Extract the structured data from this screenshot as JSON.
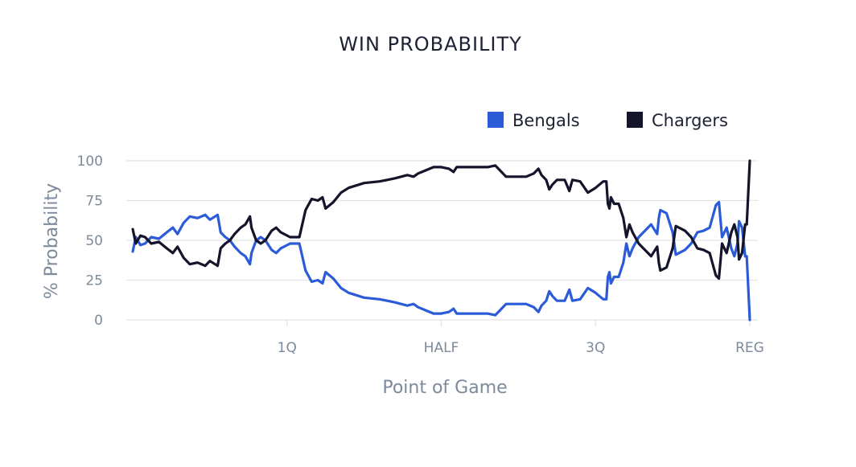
{
  "chart_data": {
    "type": "line",
    "title": "WIN PROBABILITY",
    "xlabel": "Point of Game",
    "ylabel": "% Probability",
    "ylim": [
      0,
      100
    ],
    "yticks": [
      0,
      25,
      50,
      75,
      100
    ],
    "xlim": [
      0,
      4
    ],
    "xticks": [
      {
        "value": 1,
        "label": "1Q"
      },
      {
        "value": 2,
        "label": "HALF"
      },
      {
        "value": 3,
        "label": "3Q"
      },
      {
        "value": 4,
        "label": "REG"
      }
    ],
    "grid": true,
    "legend_position": "top-right",
    "colors": {
      "Bengals": "#2b5bd7",
      "Chargers": "#14142b"
    },
    "series": [
      {
        "name": "Bengals",
        "points": [
          [
            0.0,
            43
          ],
          [
            0.02,
            52
          ],
          [
            0.05,
            47
          ],
          [
            0.08,
            48
          ],
          [
            0.12,
            52
          ],
          [
            0.17,
            51
          ],
          [
            0.22,
            55
          ],
          [
            0.26,
            58
          ],
          [
            0.29,
            54
          ],
          [
            0.33,
            61
          ],
          [
            0.37,
            65
          ],
          [
            0.42,
            64
          ],
          [
            0.47,
            66
          ],
          [
            0.5,
            63
          ],
          [
            0.55,
            66
          ],
          [
            0.57,
            55
          ],
          [
            0.6,
            52
          ],
          [
            0.63,
            50
          ],
          [
            0.66,
            46
          ],
          [
            0.7,
            42
          ],
          [
            0.73,
            40
          ],
          [
            0.76,
            35
          ],
          [
            0.77,
            42
          ],
          [
            0.8,
            50
          ],
          [
            0.83,
            52
          ],
          [
            0.86,
            50
          ],
          [
            0.9,
            44
          ],
          [
            0.93,
            42
          ],
          [
            0.96,
            45
          ],
          [
            1.02,
            48
          ],
          [
            1.08,
            48
          ],
          [
            1.12,
            31
          ],
          [
            1.16,
            24
          ],
          [
            1.2,
            25
          ],
          [
            1.23,
            23
          ],
          [
            1.25,
            30
          ],
          [
            1.3,
            26
          ],
          [
            1.35,
            20
          ],
          [
            1.4,
            17
          ],
          [
            1.5,
            14
          ],
          [
            1.6,
            13
          ],
          [
            1.65,
            12
          ],
          [
            1.7,
            11
          ],
          [
            1.78,
            9
          ],
          [
            1.82,
            10
          ],
          [
            1.85,
            8
          ],
          [
            1.9,
            6
          ],
          [
            1.95,
            4
          ],
          [
            2.0,
            4
          ],
          [
            2.05,
            5
          ],
          [
            2.08,
            7
          ],
          [
            2.1,
            4
          ],
          [
            2.2,
            4
          ],
          [
            2.3,
            4
          ],
          [
            2.35,
            3
          ],
          [
            2.38,
            6
          ],
          [
            2.42,
            10
          ],
          [
            2.48,
            10
          ],
          [
            2.55,
            10
          ],
          [
            2.6,
            8
          ],
          [
            2.63,
            5
          ],
          [
            2.65,
            9
          ],
          [
            2.68,
            12
          ],
          [
            2.7,
            18
          ],
          [
            2.72,
            15
          ],
          [
            2.75,
            12
          ],
          [
            2.8,
            12
          ],
          [
            2.83,
            19
          ],
          [
            2.85,
            12
          ],
          [
            2.9,
            13
          ],
          [
            2.95,
            20
          ],
          [
            3.0,
            17
          ],
          [
            3.05,
            13
          ],
          [
            3.07,
            13
          ],
          [
            3.08,
            27
          ],
          [
            3.09,
            30
          ],
          [
            3.1,
            23
          ],
          [
            3.12,
            27
          ],
          [
            3.15,
            27
          ],
          [
            3.18,
            36
          ],
          [
            3.2,
            48
          ],
          [
            3.22,
            40
          ],
          [
            3.24,
            45
          ],
          [
            3.28,
            52
          ],
          [
            3.32,
            56
          ],
          [
            3.36,
            60
          ],
          [
            3.4,
            54
          ],
          [
            3.41,
            64
          ],
          [
            3.42,
            69
          ],
          [
            3.46,
            67
          ],
          [
            3.5,
            55
          ],
          [
            3.52,
            41
          ],
          [
            3.58,
            44
          ],
          [
            3.62,
            48
          ],
          [
            3.66,
            55
          ],
          [
            3.7,
            56
          ],
          [
            3.74,
            58
          ],
          [
            3.78,
            72
          ],
          [
            3.8,
            74
          ],
          [
            3.82,
            52
          ],
          [
            3.85,
            58
          ],
          [
            3.88,
            45
          ],
          [
            3.9,
            40
          ],
          [
            3.92,
            48
          ],
          [
            3.93,
            62
          ],
          [
            3.95,
            58
          ],
          [
            3.97,
            40
          ],
          [
            3.98,
            40
          ],
          [
            4.0,
            0
          ]
        ]
      },
      {
        "name": "Chargers",
        "points": [
          [
            0.0,
            57
          ],
          [
            0.02,
            48
          ],
          [
            0.05,
            53
          ],
          [
            0.08,
            52
          ],
          [
            0.12,
            48
          ],
          [
            0.17,
            49
          ],
          [
            0.22,
            45
          ],
          [
            0.26,
            42
          ],
          [
            0.29,
            46
          ],
          [
            0.33,
            39
          ],
          [
            0.37,
            35
          ],
          [
            0.42,
            36
          ],
          [
            0.47,
            34
          ],
          [
            0.5,
            37
          ],
          [
            0.55,
            34
          ],
          [
            0.57,
            45
          ],
          [
            0.6,
            48
          ],
          [
            0.63,
            50
          ],
          [
            0.66,
            54
          ],
          [
            0.7,
            58
          ],
          [
            0.73,
            60
          ],
          [
            0.76,
            65
          ],
          [
            0.77,
            58
          ],
          [
            0.8,
            50
          ],
          [
            0.83,
            48
          ],
          [
            0.86,
            50
          ],
          [
            0.9,
            56
          ],
          [
            0.93,
            58
          ],
          [
            0.96,
            55
          ],
          [
            1.02,
            52
          ],
          [
            1.08,
            52
          ],
          [
            1.12,
            69
          ],
          [
            1.16,
            76
          ],
          [
            1.2,
            75
          ],
          [
            1.23,
            77
          ],
          [
            1.25,
            70
          ],
          [
            1.3,
            74
          ],
          [
            1.35,
            80
          ],
          [
            1.4,
            83
          ],
          [
            1.5,
            86
          ],
          [
            1.6,
            87
          ],
          [
            1.65,
            88
          ],
          [
            1.7,
            89
          ],
          [
            1.78,
            91
          ],
          [
            1.82,
            90
          ],
          [
            1.85,
            92
          ],
          [
            1.9,
            94
          ],
          [
            1.95,
            96
          ],
          [
            2.0,
            96
          ],
          [
            2.05,
            95
          ],
          [
            2.08,
            93
          ],
          [
            2.1,
            96
          ],
          [
            2.2,
            96
          ],
          [
            2.3,
            96
          ],
          [
            2.35,
            97
          ],
          [
            2.38,
            94
          ],
          [
            2.42,
            90
          ],
          [
            2.48,
            90
          ],
          [
            2.55,
            90
          ],
          [
            2.6,
            92
          ],
          [
            2.63,
            95
          ],
          [
            2.65,
            91
          ],
          [
            2.68,
            88
          ],
          [
            2.7,
            82
          ],
          [
            2.72,
            85
          ],
          [
            2.75,
            88
          ],
          [
            2.8,
            88
          ],
          [
            2.83,
            81
          ],
          [
            2.85,
            88
          ],
          [
            2.9,
            87
          ],
          [
            2.95,
            80
          ],
          [
            3.0,
            83
          ],
          [
            3.05,
            87
          ],
          [
            3.07,
            87
          ],
          [
            3.08,
            73
          ],
          [
            3.09,
            70
          ],
          [
            3.1,
            77
          ],
          [
            3.12,
            73
          ],
          [
            3.15,
            73
          ],
          [
            3.18,
            64
          ],
          [
            3.2,
            52
          ],
          [
            3.22,
            60
          ],
          [
            3.24,
            55
          ],
          [
            3.28,
            48
          ],
          [
            3.32,
            44
          ],
          [
            3.36,
            40
          ],
          [
            3.4,
            46
          ],
          [
            3.41,
            36
          ],
          [
            3.42,
            31
          ],
          [
            3.46,
            33
          ],
          [
            3.5,
            45
          ],
          [
            3.52,
            59
          ],
          [
            3.58,
            56
          ],
          [
            3.62,
            52
          ],
          [
            3.66,
            45
          ],
          [
            3.7,
            44
          ],
          [
            3.74,
            42
          ],
          [
            3.78,
            28
          ],
          [
            3.8,
            26
          ],
          [
            3.82,
            48
          ],
          [
            3.85,
            42
          ],
          [
            3.88,
            55
          ],
          [
            3.9,
            60
          ],
          [
            3.92,
            52
          ],
          [
            3.93,
            38
          ],
          [
            3.95,
            42
          ],
          [
            3.97,
            60
          ],
          [
            3.98,
            60
          ],
          [
            4.0,
            100
          ]
        ]
      }
    ]
  }
}
